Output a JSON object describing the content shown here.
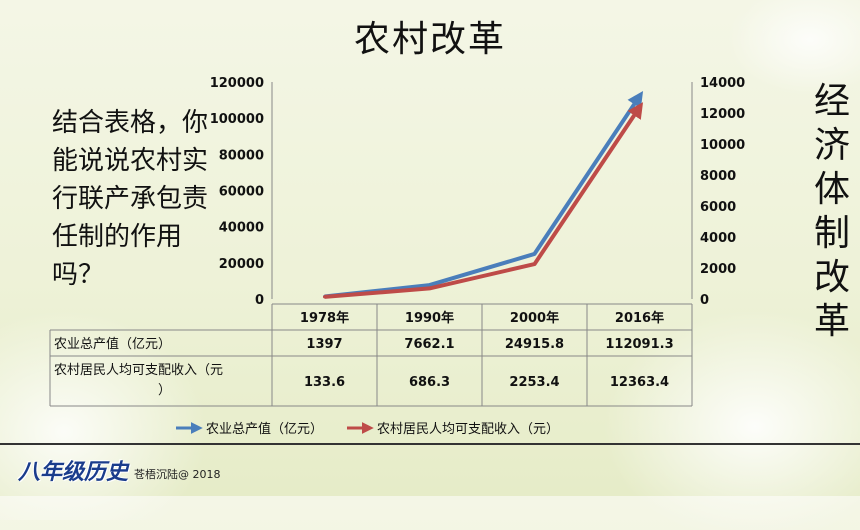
{
  "slide": {
    "title": "农村改革",
    "question": "结合表格，你能说说农村实行联产承包责任制的作用吗？",
    "vertical_text": "经济体制改革",
    "footer_logo": "八年级历史",
    "footer_copyright": "苍梧沉陆@ 2018"
  },
  "chart_data": {
    "type": "line",
    "categories": [
      "1978年",
      "1990年",
      "2000年",
      "2016年"
    ],
    "series": [
      {
        "name": "农业总产值（亿元）",
        "values": [
          1397,
          7662.1,
          24915.8,
          112091.3
        ],
        "axis": "left",
        "color": "#4a7ebb"
      },
      {
        "name": "农村居民人均可支配收入（元）",
        "values": [
          133.6,
          686.3,
          2253.4,
          12363.4
        ],
        "axis": "right",
        "color": "#be4b48"
      }
    ],
    "table_rows": [
      {
        "label": "农业总产值（亿元）",
        "cells": [
          "1397",
          "7662.1",
          "24915.8",
          "112091.3"
        ]
      },
      {
        "label_lines": [
          "农村居民人均可支配收入（元",
          "）"
        ],
        "cells": [
          "133.6",
          "686.3",
          "2253.4",
          "12363.4"
        ]
      }
    ],
    "y_left_ticks": [
      "0",
      "20000",
      "40000",
      "60000",
      "80000",
      "100000",
      "120000"
    ],
    "y_right_ticks": [
      "0",
      "2000",
      "4000",
      "6000",
      "8000",
      "10000",
      "12000",
      "14000"
    ],
    "ylim_left": [
      0,
      120000
    ],
    "ylim_right": [
      0,
      14000
    ],
    "grid": false,
    "legend_position": "bottom"
  }
}
